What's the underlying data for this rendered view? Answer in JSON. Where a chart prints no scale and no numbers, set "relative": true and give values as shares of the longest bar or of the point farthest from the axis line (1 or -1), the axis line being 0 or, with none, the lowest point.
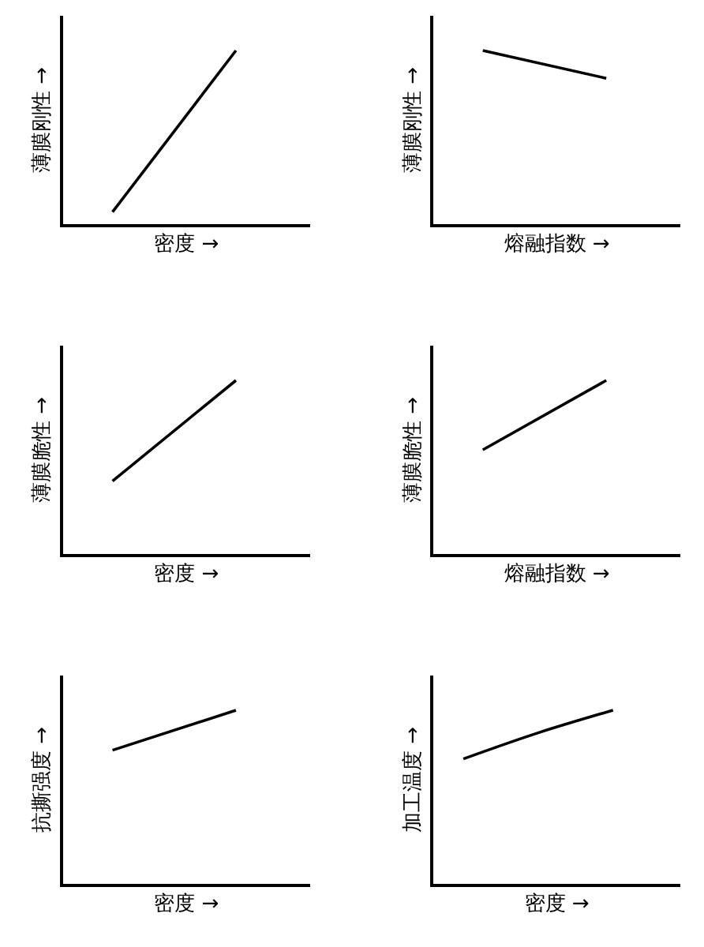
{
  "chart_data": [
    {
      "type": "line",
      "relative": true,
      "categories": [
        null,
        null
      ],
      "series": [
        {
          "color": "#000000",
          "values": [
            0.07,
            1
          ]
        }
      ],
      "xlabel": "密度 →",
      "ylabel": "薄膜刚性 →",
      "marker": "none",
      "line_style": "solid"
    },
    {
      "type": "line",
      "relative": true,
      "categories": [
        null,
        null
      ],
      "series": [
        {
          "color": "#000000",
          "values": [
            1,
            0.84
          ]
        }
      ],
      "xlabel": "熔融指数 →",
      "ylabel": "薄膜刚性 →",
      "marker": "none",
      "line_style": "solid"
    },
    {
      "type": "line",
      "relative": true,
      "categories": [
        null,
        null
      ],
      "series": [
        {
          "color": "#000000",
          "values": [
            0.42,
            1
          ]
        }
      ],
      "xlabel": "密度 →",
      "ylabel": "薄膜脆性 →",
      "marker": "none",
      "line_style": "solid"
    },
    {
      "type": "line",
      "relative": true,
      "categories": [
        null,
        null
      ],
      "series": [
        {
          "color": "#000000",
          "values": [
            0.6,
            1
          ]
        }
      ],
      "xlabel": "熔融指数 →",
      "ylabel": "薄膜脆性 →",
      "marker": "none",
      "line_style": "solid"
    },
    {
      "type": "line",
      "relative": true,
      "categories": [
        null,
        null
      ],
      "series": [
        {
          "color": "#000000",
          "values": [
            0.77,
            1
          ]
        }
      ],
      "xlabel": "密度 →",
      "ylabel": "抗撕强度 →",
      "marker": "none",
      "line_style": "solid"
    },
    {
      "type": "line",
      "relative": true,
      "categories": [
        null,
        null,
        null
      ],
      "series": [
        {
          "color": "#000000",
          "values": [
            0.72,
            0.87,
            1
          ]
        }
      ],
      "xlabel": "密度 →",
      "ylabel": "加工温度 →",
      "marker": "none",
      "line_style": "solid"
    }
  ]
}
